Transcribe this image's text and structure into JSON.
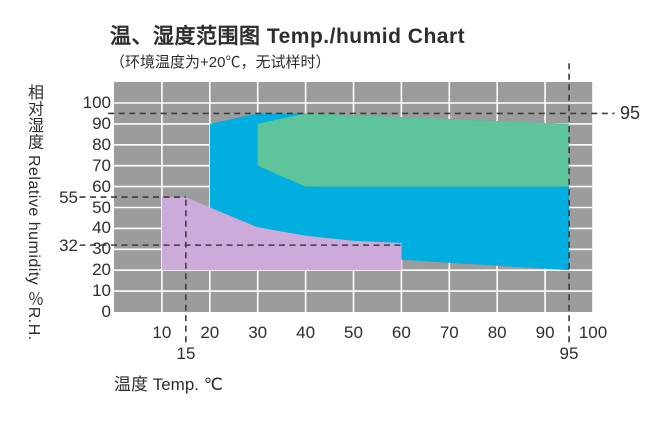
{
  "title": "温、湿度范围图  Temp./humid Chart",
  "subtitle": "（环境温度为+20℃，无试样时）",
  "x_axis": {
    "title": "温度 Temp. ℃"
  },
  "y_axis": {
    "title": "相对湿度  Relative humidity  ％R.H."
  },
  "annotations": {
    "humidity_55": "55",
    "humidity_32": "32",
    "temp_15": "15",
    "temp_95": "95",
    "humidity_95": "95"
  },
  "colors": {
    "plot_background": "#9c9c9c",
    "grid": "#ffffff",
    "dashed_line": "#3d3d3d",
    "blue_region": "#00afe0",
    "green_region": "#5ec49b",
    "purple_region": "#ccabdb",
    "text": "#2d2d2d"
  },
  "chart_data": {
    "type": "area",
    "title": "温、湿度范围图 Temp./humid Chart",
    "subtitle": "（环境温度为+20℃，无试样时）",
    "xlabel": "温度 Temp. ℃",
    "ylabel": "相对湿度 Relative humidity ％R.H.",
    "xlim": [
      0,
      100
    ],
    "ylim": [
      0,
      110
    ],
    "x_ticks": [
      10,
      20,
      30,
      40,
      50,
      60,
      70,
      80,
      90,
      100
    ],
    "y_ticks": [
      100,
      90,
      80,
      70,
      60,
      50,
      40,
      30,
      20,
      10,
      0
    ],
    "grid": true,
    "legend": "none",
    "regions": [
      {
        "name": "overall-temp-humidity-range",
        "color": "#00afe0",
        "points": [
          [
            20,
            50
          ],
          [
            20,
            90
          ],
          [
            30,
            95
          ],
          [
            40,
            95
          ],
          [
            95,
            90
          ],
          [
            95,
            20
          ],
          [
            60,
            25
          ],
          [
            60,
            33
          ],
          [
            50,
            34
          ],
          [
            40,
            36.5
          ],
          [
            30,
            40.5
          ]
        ]
      },
      {
        "name": "constant-humidity-range",
        "color": "#5ec49b",
        "points": [
          [
            30,
            90
          ],
          [
            40,
            95
          ],
          [
            95,
            90
          ],
          [
            95,
            60
          ],
          [
            40,
            60
          ],
          [
            30,
            70
          ]
        ]
      },
      {
        "name": "low-humidity-range",
        "color": "#ccabdb",
        "points": [
          [
            10,
            20
          ],
          [
            10,
            55
          ],
          [
            15,
            55
          ],
          [
            20,
            50
          ],
          [
            30,
            40.5
          ],
          [
            40,
            36.5
          ],
          [
            50,
            34
          ],
          [
            60,
            33
          ],
          [
            60,
            20
          ]
        ]
      }
    ],
    "reference_lines": [
      {
        "orient": "h",
        "value": 95,
        "from": -1.2,
        "to": 104.5,
        "label": "95"
      },
      {
        "orient": "h",
        "value": 55,
        "from": -7.2,
        "to": 15,
        "label": "55"
      },
      {
        "orient": "h",
        "value": 32,
        "from": -7.2,
        "to": 60.3,
        "label": "32"
      },
      {
        "orient": "v",
        "value": 15,
        "from": -14.5,
        "to": 55,
        "label": "15"
      },
      {
        "orient": "v",
        "value": 95,
        "from": -14.5,
        "to": 119.5,
        "label": "95"
      }
    ]
  }
}
